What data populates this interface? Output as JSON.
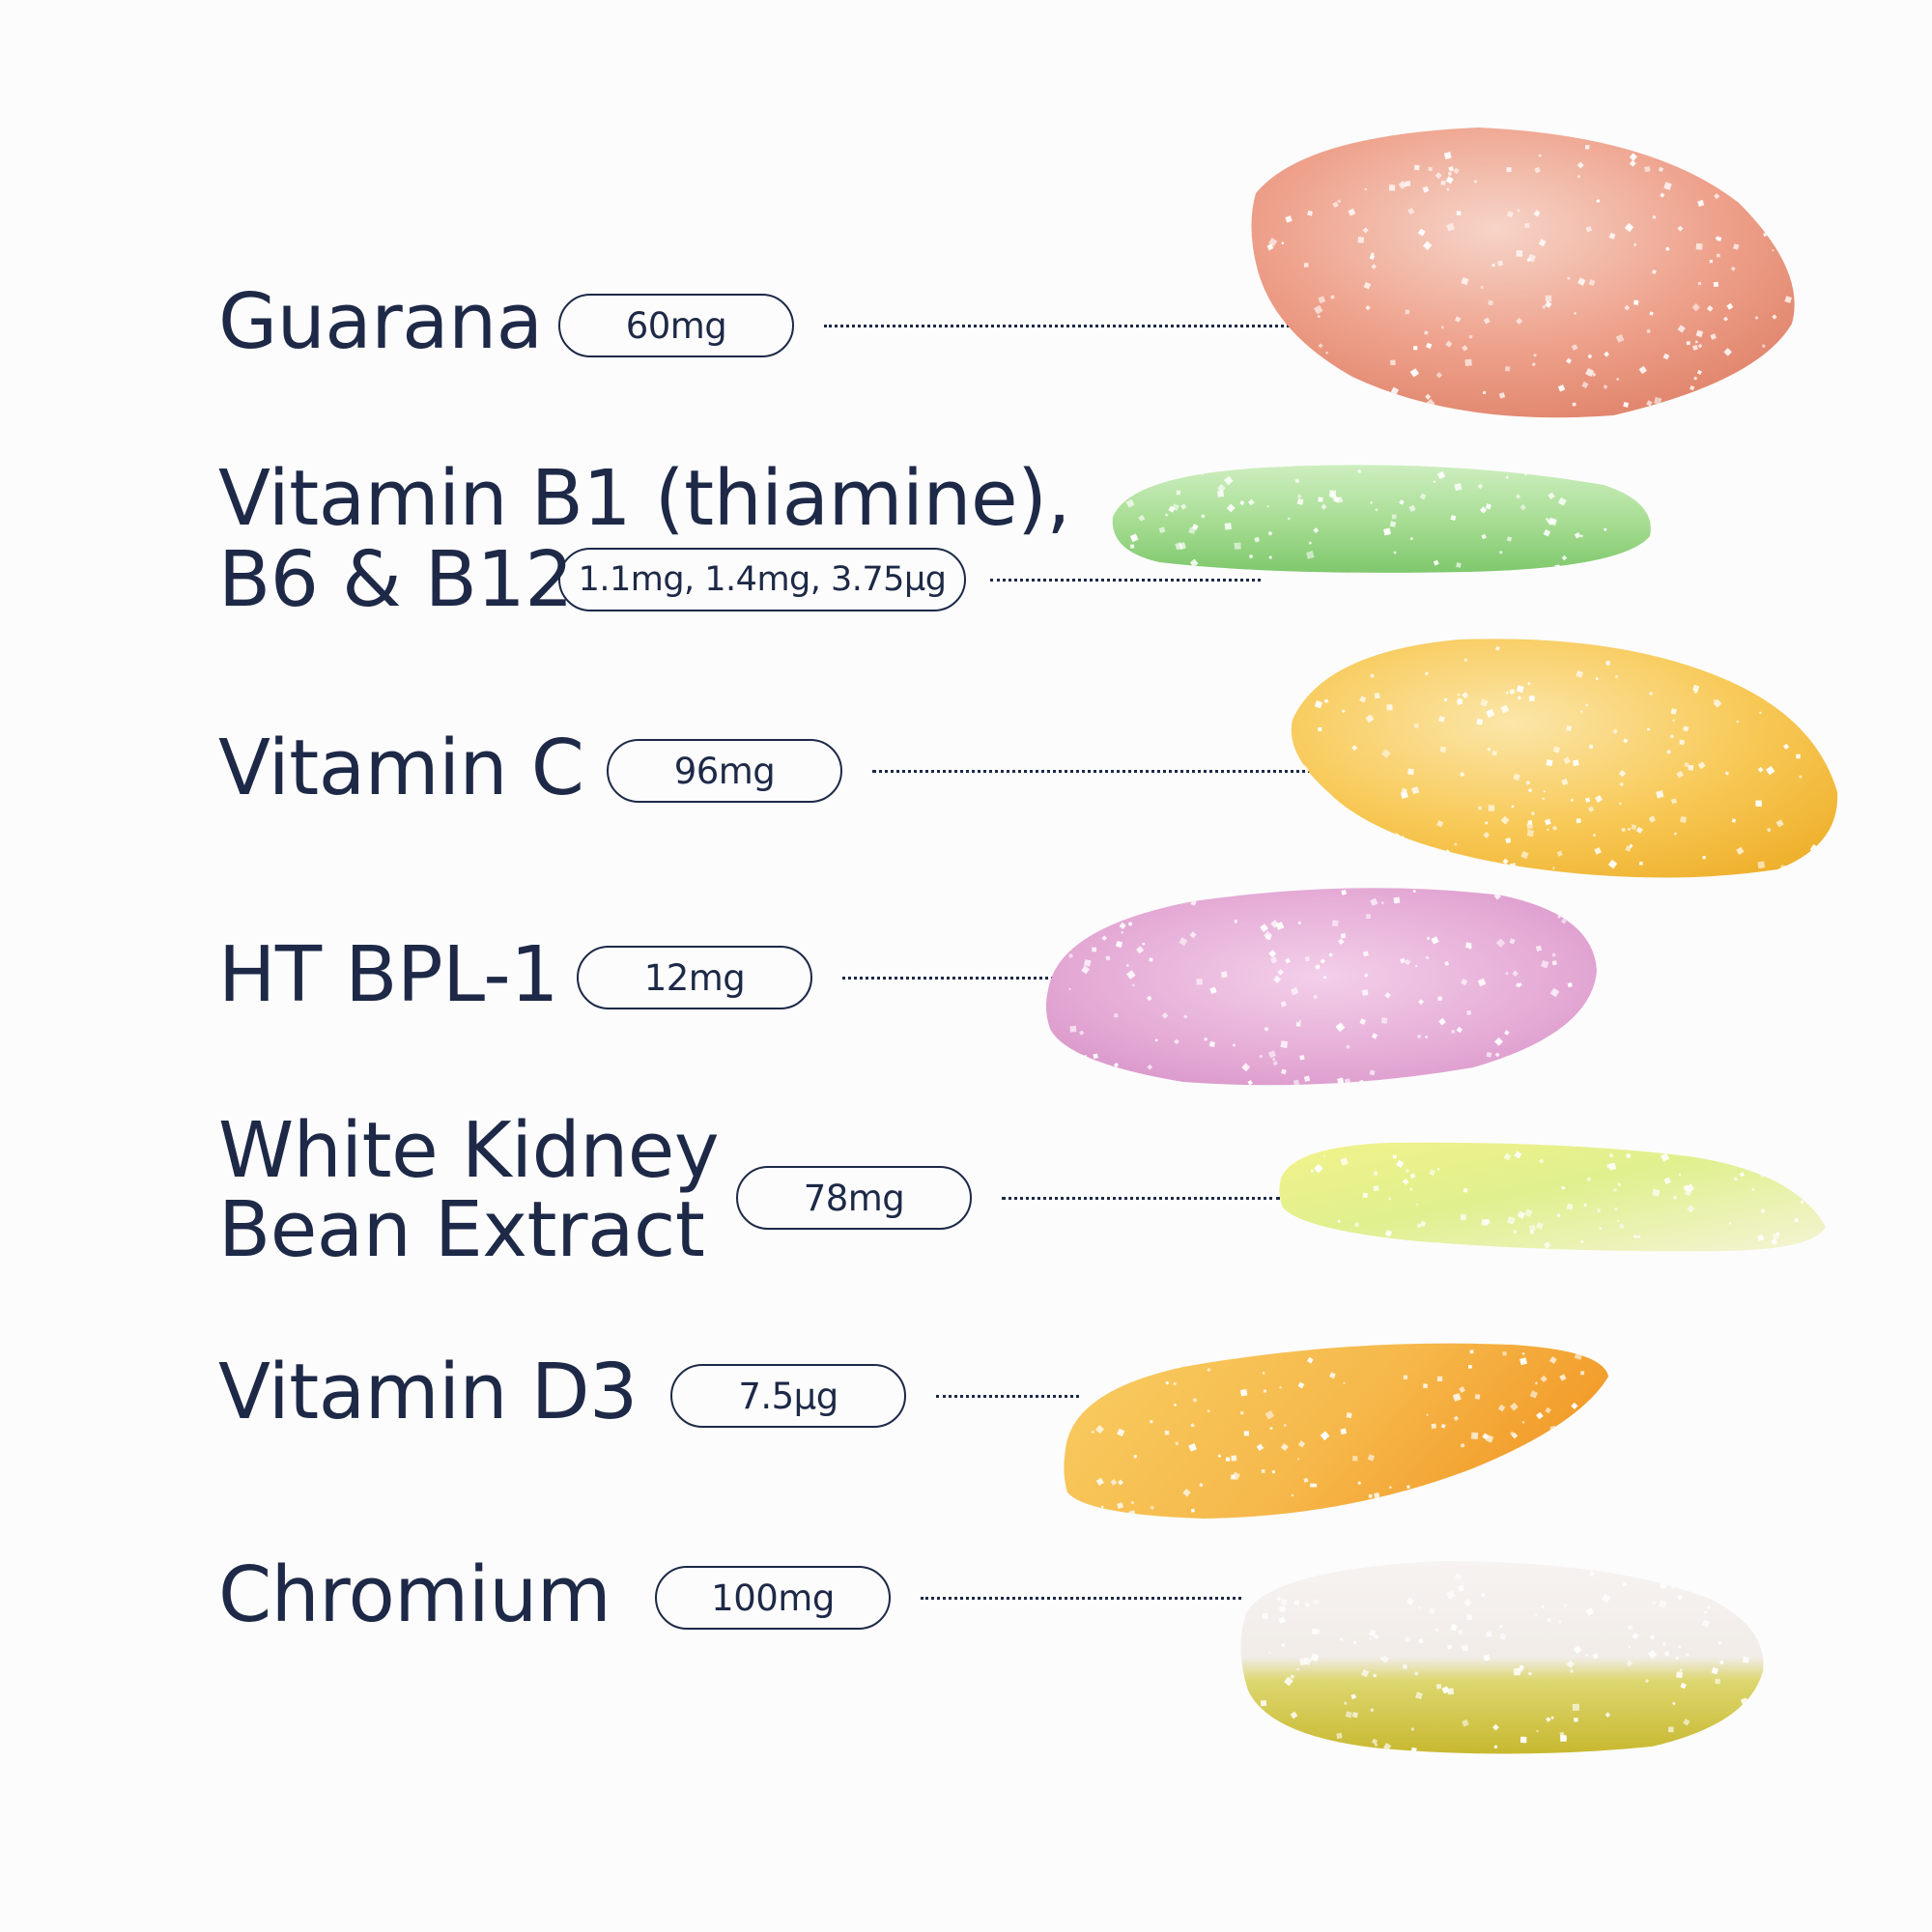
{
  "ingredients": [
    {
      "name_lines": [
        "Guarana"
      ],
      "dose": "60mg",
      "color": "#e88f78"
    },
    {
      "name_lines": [
        "Vitamin B1 (thiamine),",
        "B6 & B12"
      ],
      "dose": "1.1mg, 1.4mg, 3.75µg",
      "color": "#9ed88a"
    },
    {
      "name_lines": [
        "Vitamin C"
      ],
      "dose": "96mg",
      "color": "#f7c24f"
    },
    {
      "name_lines": [
        "HT BPL-1"
      ],
      "dose": "12mg",
      "color": "#e4a9d5"
    },
    {
      "name_lines": [
        "White Kidney",
        "Bean Extract"
      ],
      "dose": "78mg",
      "color": "#dff08a"
    },
    {
      "name_lines": [
        "Vitamin D3"
      ],
      "dose": "7.5µg",
      "color": "#f6b84a"
    },
    {
      "name_lines": [
        "Chromium"
      ],
      "dose": "100mg",
      "color": "#ddd770"
    }
  ],
  "colors": {
    "text": "#1d2947",
    "background": "#fcfcfc"
  }
}
